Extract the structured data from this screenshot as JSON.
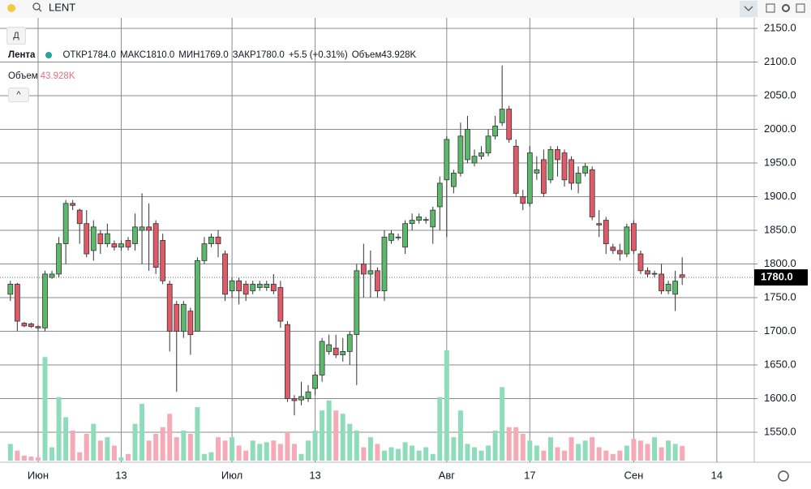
{
  "toolbar": {
    "symbol": "LENT"
  },
  "interval_button": "Д",
  "legend": {
    "name": "Лента",
    "items": [
      {
        "label": "ОТКР",
        "value": "1784.0"
      },
      {
        "label": "МАКС",
        "value": "1810.0"
      },
      {
        "label": "МИН",
        "value": "1769.0"
      },
      {
        "label": "ЗАКР",
        "value": "1780.0"
      }
    ],
    "change": "+5.5 (+0.31%)",
    "volume_label": "Объем",
    "volume_value": "43.928K"
  },
  "volume_legend": {
    "label": "Объем",
    "value": "43.928K"
  },
  "chart_data": {
    "type": "candlestick",
    "open": [
      1755,
      1770,
      1712,
      1711,
      1707,
      1705,
      1780,
      1785,
      1830,
      1890,
      1880,
      1860,
      1820,
      1845,
      1830,
      1830,
      1825,
      1835,
      1830,
      1850,
      1855,
      1860,
      1835,
      1770,
      1740,
      1700,
      1730,
      1700,
      1805,
      1830,
      1840,
      1815,
      1760,
      1775,
      1770,
      1760,
      1765,
      1765,
      1770,
      1765,
      1710,
      1600,
      1598,
      1600,
      1615,
      1635,
      1670,
      1675,
      1665,
      1670,
      1695,
      1800,
      1785,
      1790,
      1760,
      1835,
      1840,
      1825,
      1860,
      1865,
      1865,
      1855,
      1885,
      1925,
      1915,
      1935,
      1955,
      1950,
      1960,
      1965,
      1990,
      2010,
      2030,
      1975,
      1900,
      1890,
      1935,
      1955,
      1925,
      1970,
      1965,
      1955,
      1920,
      1935,
      1940,
      1860,
      1865,
      1825,
      1820,
      1815,
      1860,
      1815,
      1790,
      1785,
      1785,
      1760,
      1755,
      1784
    ],
    "high": [
      1775,
      1772,
      1714,
      1713,
      1709,
      1790,
      1790,
      1840,
      1895,
      1895,
      1882,
      1880,
      1865,
      1850,
      1860,
      1835,
      1835,
      1840,
      1875,
      1905,
      1890,
      1865,
      1845,
      1775,
      1745,
      1745,
      1735,
      1810,
      1840,
      1845,
      1850,
      1820,
      1780,
      1780,
      1775,
      1775,
      1775,
      1775,
      1785,
      1775,
      1715,
      1605,
      1625,
      1620,
      1640,
      1690,
      1695,
      1695,
      1690,
      1700,
      1800,
      1830,
      1820,
      1795,
      1850,
      1850,
      1845,
      1865,
      1875,
      1875,
      1870,
      1885,
      1930,
      1990,
      1940,
      2010,
      2020,
      1970,
      1975,
      2000,
      2020,
      2095,
      2035,
      1985,
      1910,
      1975,
      1960,
      1970,
      1975,
      1975,
      1970,
      1960,
      1945,
      1950,
      1945,
      1880,
      1870,
      1830,
      1830,
      1860,
      1865,
      1820,
      1795,
      1790,
      1800,
      1775,
      1790,
      1810
    ],
    "low": [
      1745,
      1700,
      1706,
      1705,
      1700,
      1700,
      1778,
      1780,
      1800,
      1880,
      1830,
      1810,
      1805,
      1815,
      1825,
      1820,
      1820,
      1820,
      1820,
      1800,
      1790,
      1785,
      1770,
      1670,
      1610,
      1690,
      1665,
      1700,
      1800,
      1825,
      1810,
      1745,
      1750,
      1740,
      1745,
      1755,
      1760,
      1760,
      1755,
      1705,
      1595,
      1575,
      1590,
      1595,
      1605,
      1625,
      1665,
      1660,
      1655,
      1650,
      1620,
      1750,
      1750,
      1750,
      1745,
      1830,
      1835,
      1815,
      1850,
      1860,
      1860,
      1830,
      1850,
      1840,
      1905,
      1930,
      1950,
      1945,
      1955,
      1960,
      1985,
      2005,
      1980,
      1900,
      1880,
      1885,
      1925,
      1900,
      1920,
      1930,
      1915,
      1910,
      1905,
      1930,
      1865,
      1840,
      1815,
      1815,
      1805,
      1810,
      1815,
      1785,
      1780,
      1780,
      1755,
      1755,
      1730,
      1769
    ],
    "close": [
      1770,
      1715,
      1708,
      1707,
      1705,
      1785,
      1785,
      1830,
      1890,
      1887,
      1860,
      1815,
      1855,
      1830,
      1845,
      1825,
      1830,
      1825,
      1855,
      1855,
      1850,
      1795,
      1775,
      1700,
      1700,
      1740,
      1695,
      1805,
      1830,
      1840,
      1830,
      1755,
      1775,
      1760,
      1755,
      1770,
      1770,
      1770,
      1760,
      1715,
      1600,
      1597,
      1603,
      1610,
      1635,
      1685,
      1680,
      1665,
      1670,
      1695,
      1790,
      1785,
      1790,
      1760,
      1840,
      1845,
      1840,
      1860,
      1865,
      1870,
      1866,
      1880,
      1920,
      1985,
      1935,
      1990,
      2000,
      1960,
      1965,
      1990,
      2005,
      2030,
      1985,
      1905,
      1890,
      1965,
      1940,
      1905,
      1970,
      1955,
      1925,
      1920,
      1935,
      1945,
      1870,
      1858,
      1830,
      1820,
      1815,
      1855,
      1820,
      1790,
      1785,
      1786,
      1760,
      1770,
      1774.5,
      1780
    ],
    "volume": [
      50,
      30,
      15,
      12,
      10,
      310,
      40,
      190,
      130,
      90,
      25,
      80,
      110,
      60,
      70,
      45,
      10,
      20,
      110,
      170,
      60,
      80,
      100,
      140,
      70,
      90,
      80,
      160,
      20,
      25,
      70,
      60,
      70,
      45,
      30,
      60,
      50,
      55,
      60,
      50,
      85,
      50,
      20,
      60,
      90,
      150,
      180,
      150,
      140,
      110,
      90,
      40,
      70,
      50,
      30,
      40,
      35,
      55,
      45,
      30,
      40,
      20,
      190,
      330,
      70,
      150,
      50,
      40,
      30,
      45,
      90,
      220,
      100,
      100,
      80,
      60,
      45,
      30,
      70,
      40,
      30,
      70,
      50,
      60,
      70,
      40,
      30,
      20,
      30,
      45,
      65,
      60,
      50,
      70,
      40,
      60,
      50,
      43.928
    ],
    "xlim": [
      -1.5,
      107.4
    ],
    "xticks": [
      {
        "value": 4,
        "label": "Июн"
      },
      {
        "value": 16,
        "label": "13"
      },
      {
        "value": 32,
        "label": "Июл"
      },
      {
        "value": 44,
        "label": "13"
      },
      {
        "value": 63,
        "label": "Авг"
      },
      {
        "value": 75,
        "label": "17"
      },
      {
        "value": 90,
        "label": "Сен"
      },
      {
        "value": 102,
        "label": "14"
      }
    ],
    "ylim": [
      1505.4,
      2165.7
    ],
    "yticks": [
      {
        "value": 1550,
        "label": "1550.0"
      },
      {
        "value": 1600,
        "label": "1600.0"
      },
      {
        "value": 1650,
        "label": "1650.0"
      },
      {
        "value": 1700,
        "label": "1700.0"
      },
      {
        "value": 1750,
        "label": "1750.0"
      },
      {
        "value": 1800,
        "label": "1800.0"
      },
      {
        "value": 1850,
        "label": "1850.0"
      },
      {
        "value": 1900,
        "label": "1900.0"
      },
      {
        "value": 1950,
        "label": "1950.0"
      },
      {
        "value": 2000,
        "label": "2000.0"
      },
      {
        "value": 2050,
        "label": "2050.0"
      },
      {
        "value": 2100,
        "label": "2100.0"
      },
      {
        "value": 2150,
        "label": "2150.0"
      }
    ],
    "y2lim": [
      0,
      330
    ],
    "last_price_label": "1780.0",
    "grid": true,
    "up_color": "#5cb96c",
    "down_color": "#e05a68",
    "volume_up_color": "#8fdcbc",
    "volume_down_color": "#f6aab6"
  }
}
